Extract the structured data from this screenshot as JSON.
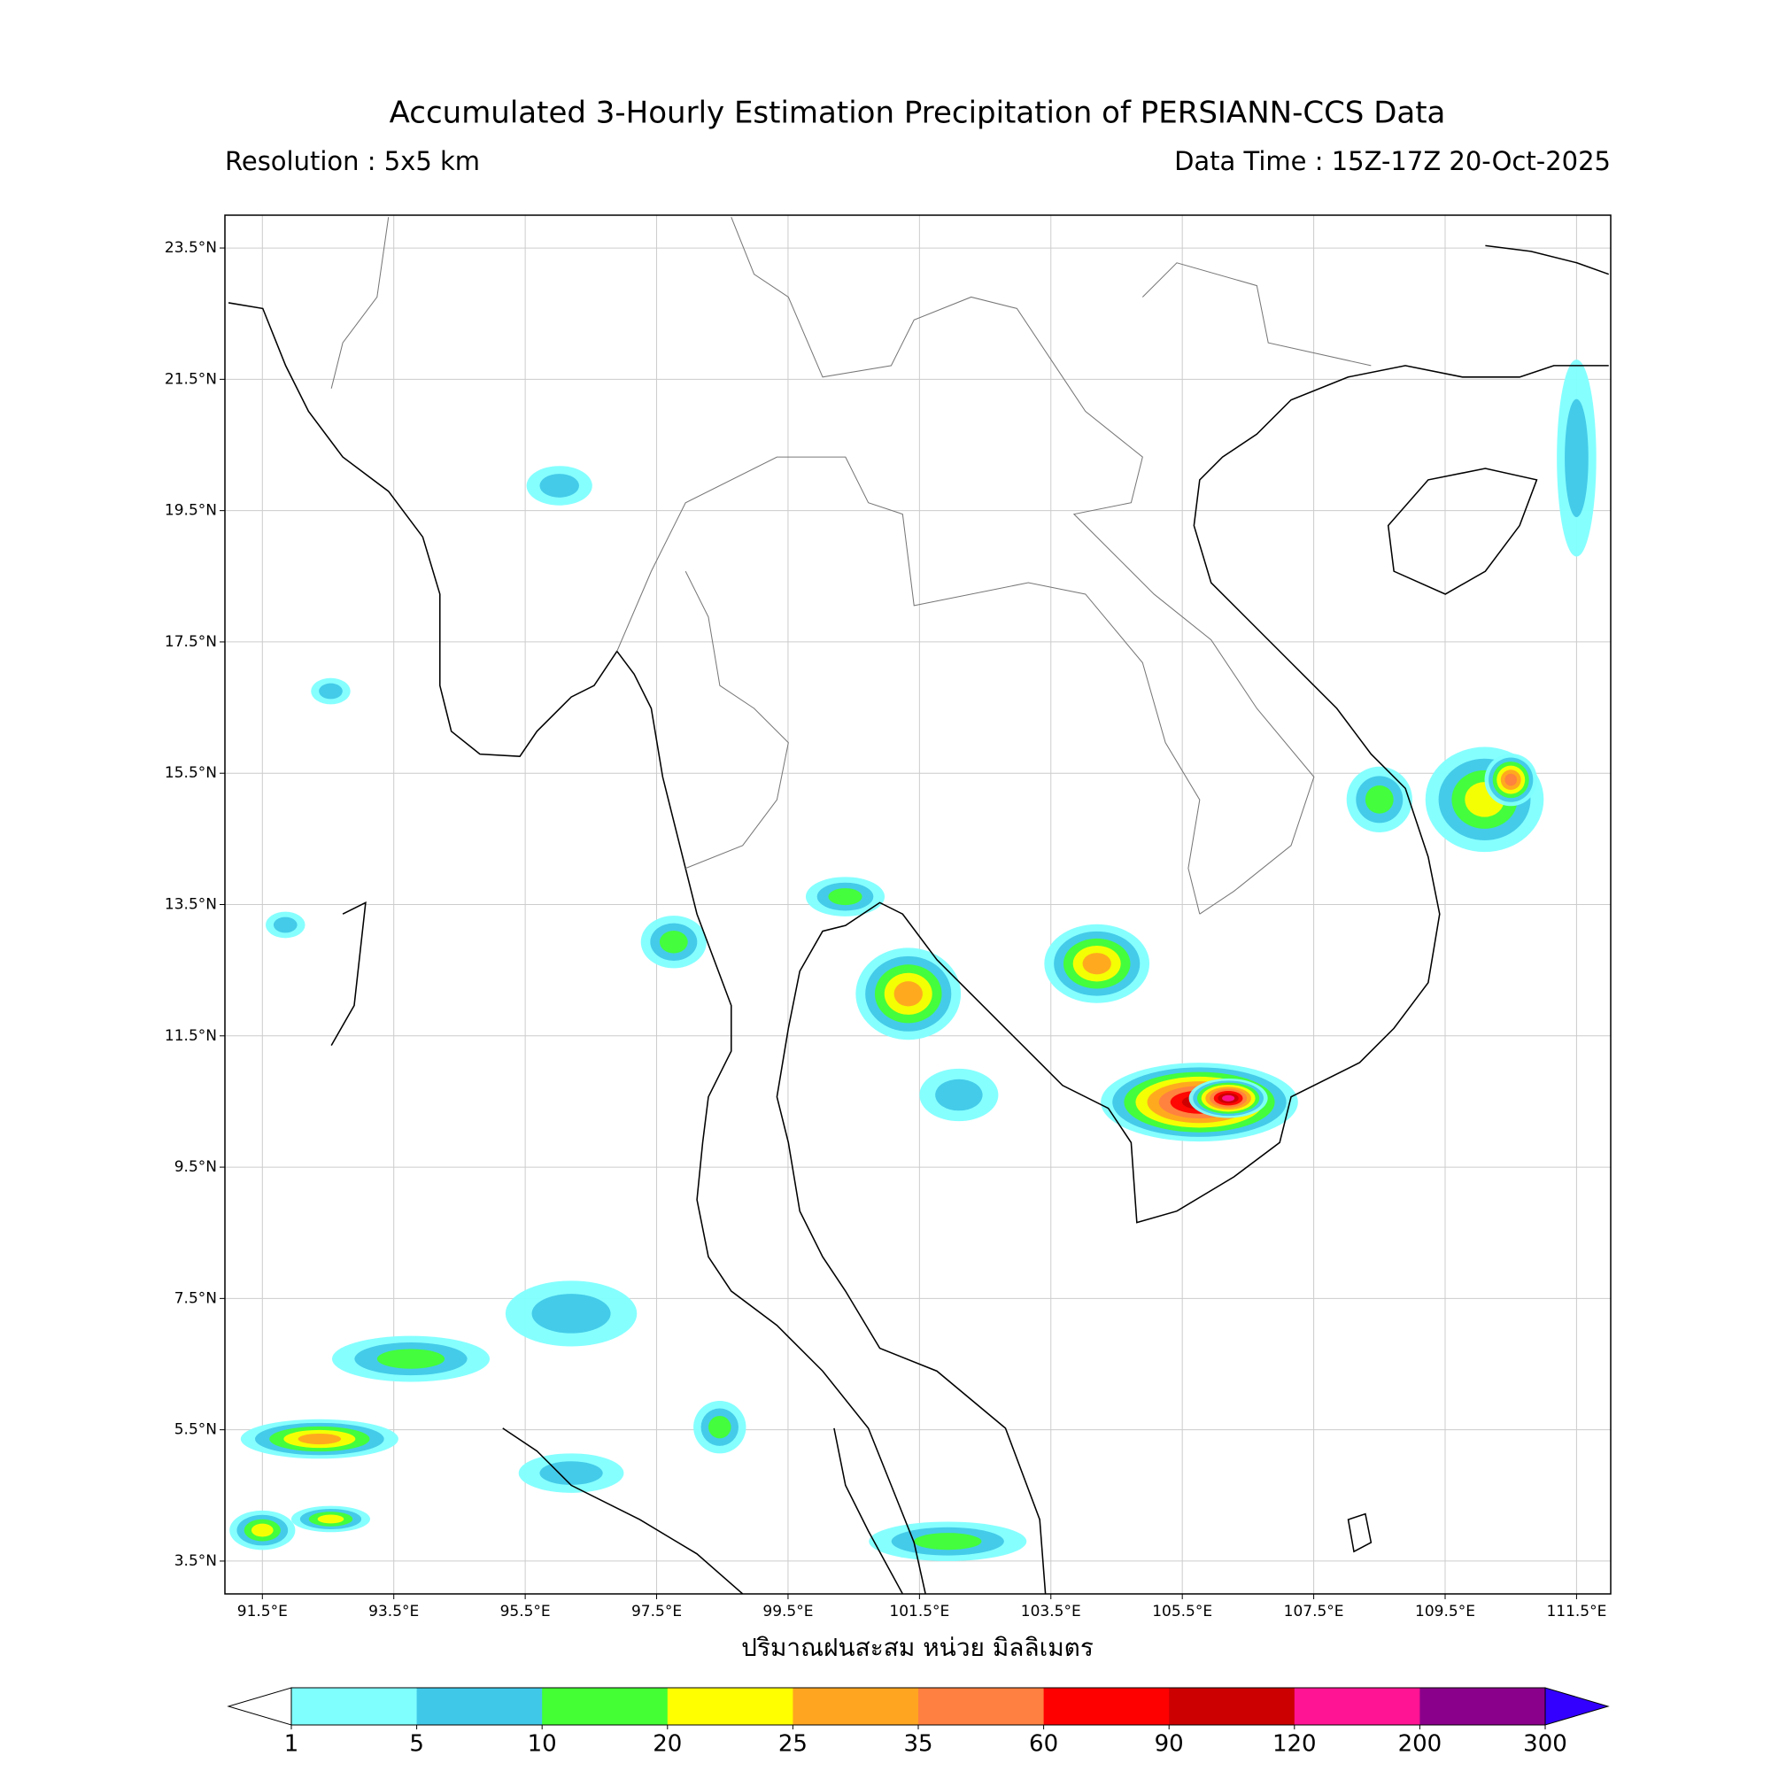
{
  "map": {
    "title": "Accumulated 3-Hourly Estimation Precipitation of PERSIANN-CCS Data",
    "resolution": "Resolution : 5x5 km",
    "data_time": "Data Time : 15Z-17Z 20-Oct-2025",
    "x_label": "ปริมาณฝนสะสม หน่วย มิลลิเมตร",
    "xlim": [
      90.93,
      112.02
    ],
    "ylim": [
      3.0,
      24.0
    ],
    "grid": true,
    "xticks": [
      {
        "value": 91.5,
        "label": "91.5°E"
      },
      {
        "value": 93.5,
        "label": "93.5°E"
      },
      {
        "value": 95.5,
        "label": "95.5°E"
      },
      {
        "value": 97.5,
        "label": "97.5°E"
      },
      {
        "value": 99.5,
        "label": "99.5°E"
      },
      {
        "value": 101.5,
        "label": "101.5°E"
      },
      {
        "value": 103.5,
        "label": "103.5°E"
      },
      {
        "value": 105.5,
        "label": "105.5°E"
      },
      {
        "value": 107.5,
        "label": "107.5°E"
      },
      {
        "value": 109.5,
        "label": "109.5°E"
      },
      {
        "value": 111.5,
        "label": "111.5°E"
      }
    ],
    "yticks": [
      {
        "value": 23.5,
        "label": "23.5°N"
      },
      {
        "value": 21.5,
        "label": "21.5°N"
      },
      {
        "value": 19.5,
        "label": "19.5°N"
      },
      {
        "value": 17.5,
        "label": "17.5°N"
      },
      {
        "value": 15.5,
        "label": "15.5°N"
      },
      {
        "value": 13.5,
        "label": "13.5°N"
      },
      {
        "value": 11.5,
        "label": "11.5°N"
      },
      {
        "value": 9.5,
        "label": "9.5°N"
      },
      {
        "value": 7.5,
        "label": "7.5°N"
      },
      {
        "value": 5.5,
        "label": "5.5°N"
      },
      {
        "value": 3.5,
        "label": "3.5°N"
      }
    ],
    "colorbar": {
      "levels": [
        1,
        5,
        10,
        20,
        25,
        35,
        60,
        90,
        120,
        200,
        300
      ],
      "colors": [
        "#80ffff",
        "#40c8e8",
        "#44ff33",
        "#ffff00",
        "#ffa520",
        "#ff8040",
        "#ff0000",
        "#cc0000",
        "#ff1493",
        "#8b008b"
      ],
      "under_color": "#ffffff",
      "over_color": "#3300ff"
    },
    "rain_cells": [
      {
        "lon": 101.33,
        "lat": 12.14,
        "rx": 0.8,
        "ry": 0.7,
        "mm": 25
      },
      {
        "lon": 104.2,
        "lat": 12.6,
        "rx": 0.8,
        "ry": 0.6,
        "mm": 25
      },
      {
        "lon": 105.76,
        "lat": 10.49,
        "rx": 1.5,
        "ry": 0.6,
        "mm": 90
      },
      {
        "lon": 106.2,
        "lat": 10.55,
        "rx": 0.6,
        "ry": 0.3,
        "mm": 120
      },
      {
        "lon": 110.1,
        "lat": 15.1,
        "rx": 0.9,
        "ry": 0.8,
        "mm": 20
      },
      {
        "lon": 110.5,
        "lat": 15.4,
        "rx": 0.4,
        "ry": 0.4,
        "mm": 35
      },
      {
        "lon": 108.5,
        "lat": 15.1,
        "rx": 0.5,
        "ry": 0.5,
        "mm": 10
      },
      {
        "lon": 100.37,
        "lat": 13.62,
        "rx": 0.6,
        "ry": 0.3,
        "mm": 10
      },
      {
        "lon": 97.76,
        "lat": 12.93,
        "rx": 0.5,
        "ry": 0.4,
        "mm": 10
      },
      {
        "lon": 96.02,
        "lat": 19.88,
        "rx": 0.5,
        "ry": 0.3,
        "mm": 5
      },
      {
        "lon": 92.37,
        "lat": 5.36,
        "rx": 1.2,
        "ry": 0.3,
        "mm": 25
      },
      {
        "lon": 93.76,
        "lat": 6.58,
        "rx": 1.2,
        "ry": 0.35,
        "mm": 10
      },
      {
        "lon": 96.2,
        "lat": 7.27,
        "rx": 1.0,
        "ry": 0.5,
        "mm": 5
      },
      {
        "lon": 92.54,
        "lat": 4.14,
        "rx": 0.6,
        "ry": 0.2,
        "mm": 20
      },
      {
        "lon": 98.46,
        "lat": 5.54,
        "rx": 0.4,
        "ry": 0.4,
        "mm": 10
      },
      {
        "lon": 101.93,
        "lat": 3.8,
        "rx": 1.2,
        "ry": 0.3,
        "mm": 10
      },
      {
        "lon": 96.2,
        "lat": 4.84,
        "rx": 0.8,
        "ry": 0.3,
        "mm": 5
      },
      {
        "lon": 91.5,
        "lat": 3.97,
        "rx": 0.5,
        "ry": 0.3,
        "mm": 20
      },
      {
        "lon": 91.85,
        "lat": 13.19,
        "rx": 0.3,
        "ry": 0.2,
        "mm": 5
      },
      {
        "lon": 92.54,
        "lat": 16.75,
        "rx": 0.3,
        "ry": 0.2,
        "mm": 5
      },
      {
        "lon": 102.1,
        "lat": 10.6,
        "rx": 0.6,
        "ry": 0.4,
        "mm": 5
      },
      {
        "lon": 111.5,
        "lat": 20.3,
        "rx": 0.3,
        "ry": 1.5,
        "mm": 5
      }
    ]
  }
}
